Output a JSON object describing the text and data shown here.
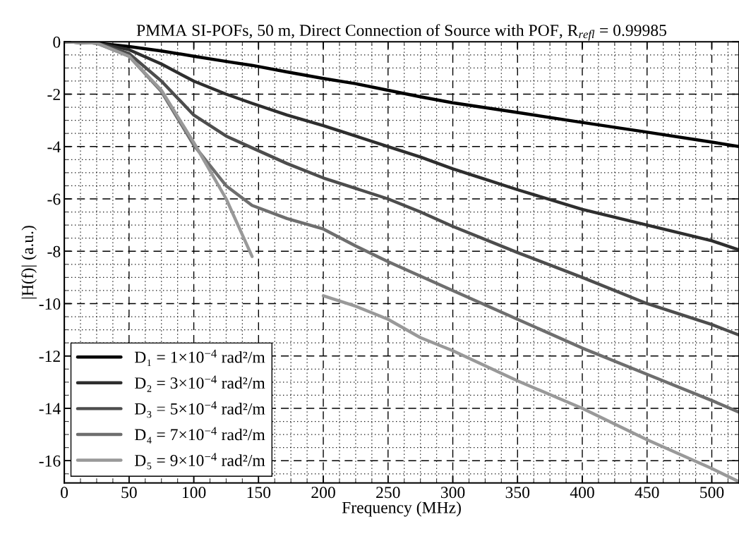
{
  "chart_data": {
    "type": "line",
    "title": "PMMA SI-POFs, 50 m, Direct Connection of Source with POF, R$_{refl}$ = 0.99985",
    "xlabel": "Frequency (MHz)",
    "ylabel": "|H(f)| (a.u.)",
    "x": [
      0,
      25,
      50,
      75,
      100,
      125,
      145,
      172,
      200,
      225,
      250,
      275,
      300,
      350,
      400,
      450,
      500,
      521
    ],
    "series": [
      {
        "name": "D₁ = 1×10$^{−4}$ rad²/m",
        "color": "#000000",
        "values": [
          0,
          -0.05,
          -0.18,
          -0.35,
          -0.55,
          -0.75,
          -0.9,
          -1.15,
          -1.4,
          -1.6,
          -1.85,
          -2.1,
          -2.33,
          -2.7,
          -3.08,
          -3.45,
          -3.83,
          -4.0
        ]
      },
      {
        "name": "D₂ = 3×10$^{−4}$ rad²/m",
        "color": "#2e2e2e",
        "values": [
          0,
          -0.05,
          -0.3,
          -0.85,
          -1.5,
          -2.0,
          -2.35,
          -2.8,
          -3.2,
          -3.6,
          -4.0,
          -4.4,
          -4.85,
          -5.65,
          -6.4,
          -7.0,
          -7.6,
          -7.95
        ]
      },
      {
        "name": "D₃ = 5×10$^{−4}$ rad²/m",
        "color": "#4d4d4d",
        "values": [
          0,
          -0.05,
          -0.45,
          -1.5,
          -2.8,
          -3.6,
          -4.05,
          -4.65,
          -5.2,
          -5.6,
          -6.0,
          -6.5,
          -7.05,
          -8.05,
          -9.0,
          -10.0,
          -10.8,
          -11.2
        ]
      },
      {
        "name": "D₄ = 7×10$^{−4}$ rad²/m",
        "color": "#6e6e6e",
        "values": [
          0,
          -0.05,
          -0.55,
          -1.9,
          -3.95,
          -5.5,
          -6.25,
          -6.75,
          -7.15,
          -7.8,
          -8.4,
          -8.95,
          -9.5,
          -10.6,
          -11.7,
          -12.7,
          -13.7,
          -14.15
        ]
      },
      {
        "name": "D₅ = 9×10$^{−4}$ rad²/m",
        "color": "#999999",
        "values": [
          0,
          -0.05,
          -0.55,
          -1.85,
          -3.85,
          -6.0,
          -8.2,
          null,
          -9.7,
          -10.1,
          -10.6,
          -11.3,
          -11.8,
          -12.95,
          -14.0,
          -15.2,
          -16.3,
          -16.8
        ]
      }
    ],
    "xlim": [
      0,
      521
    ],
    "ylim": [
      -16.85,
      0
    ],
    "xticks": [
      0,
      50,
      100,
      150,
      200,
      250,
      300,
      350,
      400,
      450,
      500
    ],
    "yticks": [
      0,
      -2,
      -4,
      -6,
      -8,
      -10,
      -12,
      -14,
      -16
    ],
    "grid": true,
    "legend": "bottom left",
    "line_style": "solid",
    "marker": "none"
  }
}
